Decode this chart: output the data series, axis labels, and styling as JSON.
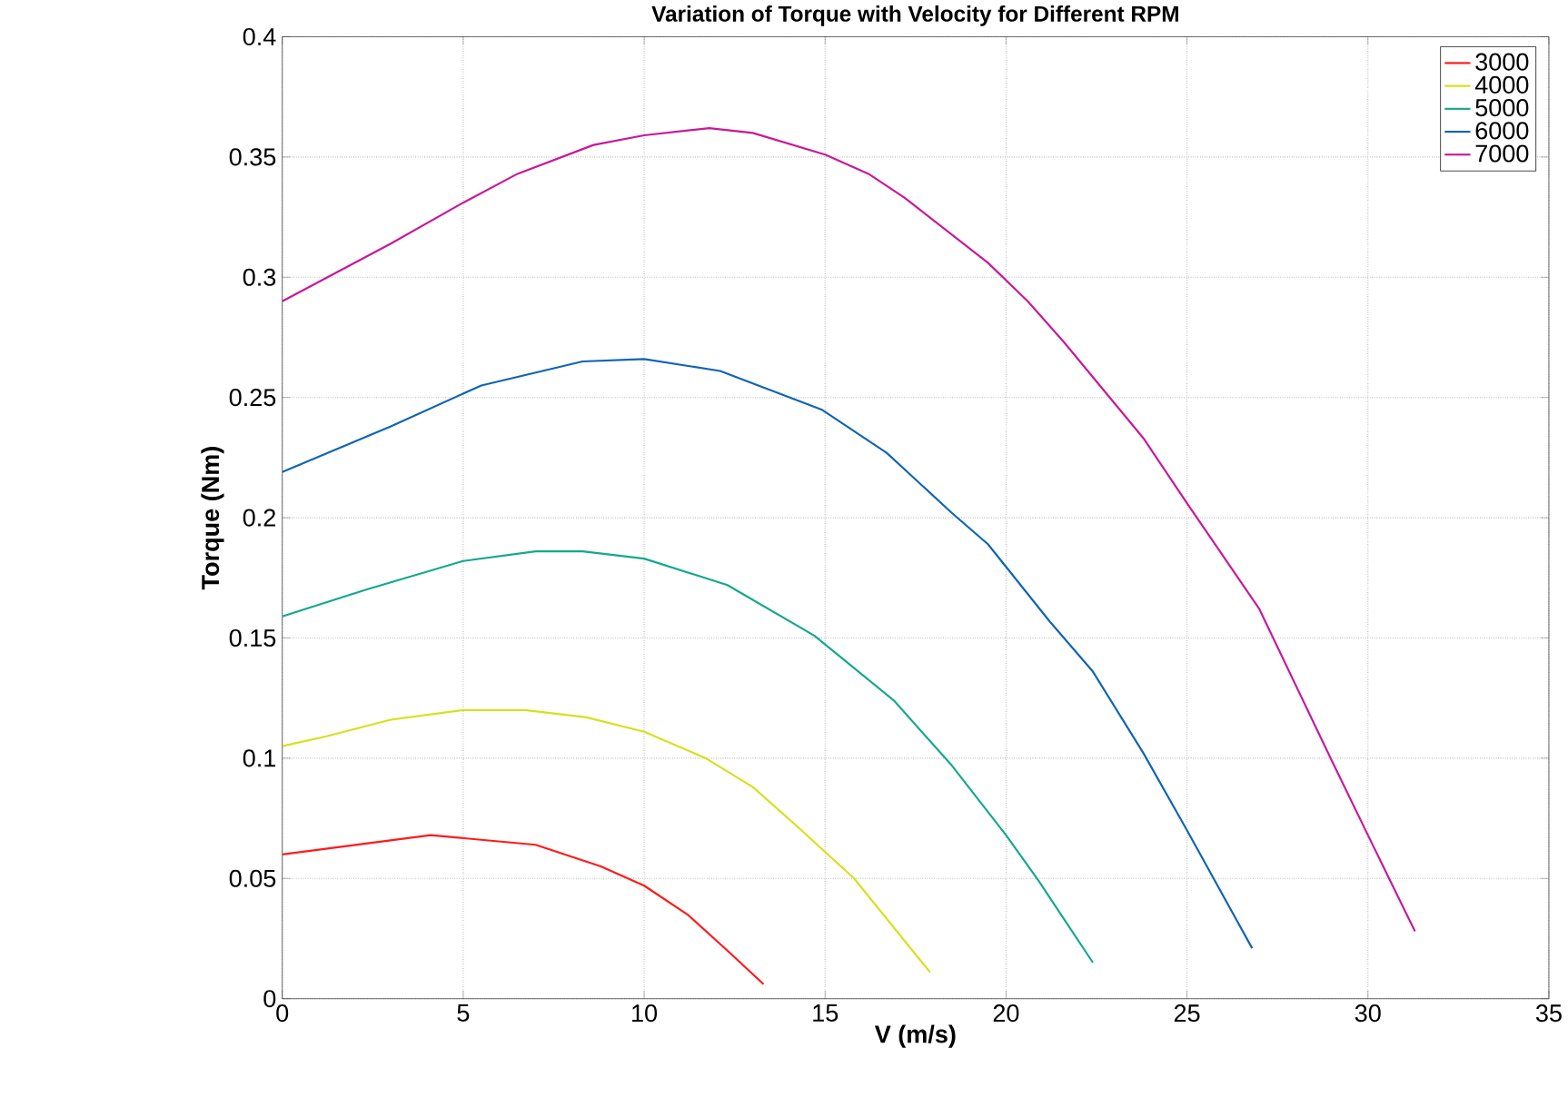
{
  "chart_data": {
    "type": "line",
    "title": "Variation of Torque with Velocity for Different RPM",
    "xlabel": "V (m/s)",
    "ylabel": "Torque (Nm)",
    "xlim": [
      0,
      35
    ],
    "xticks": [
      0,
      5,
      10,
      15,
      20,
      25,
      30,
      35
    ],
    "ylim": [
      0,
      0.4
    ],
    "yticks": [
      0,
      0.05,
      0.1,
      0.15,
      0.2,
      0.25,
      0.3,
      0.35,
      0.4
    ],
    "grid": true,
    "legend": "top right",
    "line_style": "solid",
    "series": [
      {
        "name": "3000",
        "color": "#ff1a1a",
        "x": [
          0,
          4.1,
          7.0,
          8.8,
          10.0,
          11.2,
          12.3,
          13.3
        ],
        "values": [
          0.06,
          0.068,
          0.064,
          0.055,
          0.047,
          0.035,
          0.02,
          0.006
        ]
      },
      {
        "name": "4000",
        "color": "#d6e01c",
        "x": [
          0,
          1.2,
          3.0,
          5.0,
          6.7,
          8.4,
          10.0,
          11.7,
          13.0,
          14.2,
          15.8,
          17.9
        ],
        "values": [
          0.105,
          0.109,
          0.116,
          0.12,
          0.12,
          0.117,
          0.111,
          0.1,
          0.088,
          0.072,
          0.05,
          0.011
        ]
      },
      {
        "name": "5000",
        "color": "#14a88c",
        "x": [
          0,
          2.3,
          5.0,
          7.0,
          8.3,
          10.0,
          12.3,
          14.7,
          16.9,
          18.5,
          20.0,
          20.9,
          22.4
        ],
        "values": [
          0.159,
          0.17,
          0.182,
          0.186,
          0.186,
          0.183,
          0.172,
          0.151,
          0.124,
          0.097,
          0.068,
          0.049,
          0.015
        ]
      },
      {
        "name": "6000",
        "color": "#0f64b4",
        "x": [
          0,
          3.0,
          5.5,
          8.3,
          10.0,
          12.1,
          14.9,
          16.7,
          18.5,
          19.5,
          21.2,
          22.4,
          23.8,
          25.0,
          26.8
        ],
        "values": [
          0.219,
          0.238,
          0.255,
          0.265,
          0.266,
          0.261,
          0.245,
          0.227,
          0.202,
          0.189,
          0.157,
          0.136,
          0.102,
          0.07,
          0.021
        ]
      },
      {
        "name": "7000",
        "color": "#c8189a",
        "x": [
          0,
          3.0,
          5.0,
          6.5,
          8.6,
          10.0,
          11.8,
          13.0,
          15.0,
          16.2,
          17.2,
          19.5,
          20.6,
          21.6,
          23.8,
          25.0,
          27.0,
          29.0,
          30.0,
          31.3
        ],
        "values": [
          0.29,
          0.314,
          0.331,
          0.343,
          0.355,
          0.359,
          0.362,
          0.36,
          0.351,
          0.343,
          0.333,
          0.306,
          0.29,
          0.273,
          0.233,
          0.206,
          0.162,
          0.099,
          0.068,
          0.028
        ]
      }
    ]
  }
}
